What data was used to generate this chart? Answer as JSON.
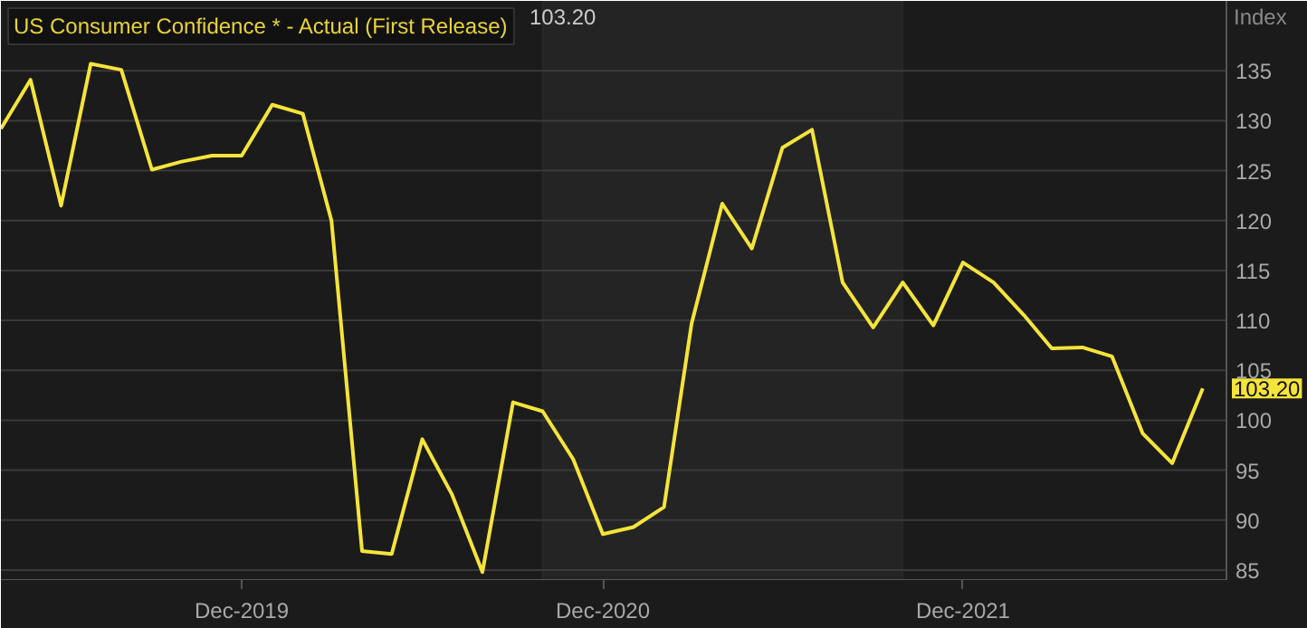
{
  "chart_data": {
    "type": "line",
    "title": "US Consumer Confidence * - Actual (First Release)",
    "subtitle": "103.20",
    "ylabel": "Index",
    "x": [
      "2019-04",
      "2019-05",
      "2019-06",
      "2019-07",
      "2019-08",
      "2019-09",
      "2019-10",
      "2019-11",
      "2019-12",
      "2020-01",
      "2020-02",
      "2020-03",
      "2020-04",
      "2020-05",
      "2020-06",
      "2020-07",
      "2020-08",
      "2020-09",
      "2020-10",
      "2020-11",
      "2020-12",
      "2021-01",
      "2021-02",
      "2021-03",
      "2021-04",
      "2021-05",
      "2021-06",
      "2021-07",
      "2021-08",
      "2021-09",
      "2021-10",
      "2021-11",
      "2021-12",
      "2022-01",
      "2022-02",
      "2022-03",
      "2022-04",
      "2022-05",
      "2022-06",
      "2022-07",
      "2022-08"
    ],
    "series": [
      {
        "color": "#f5e43a",
        "values": [
          129.2,
          134.1,
          121.5,
          135.7,
          135.1,
          125.1,
          125.9,
          126.5,
          126.5,
          131.6,
          130.7,
          120.0,
          86.9,
          86.6,
          98.1,
          92.6,
          84.8,
          101.8,
          100.9,
          96.1,
          88.6,
          89.3,
          91.3,
          109.7,
          121.7,
          117.2,
          127.3,
          129.1,
          113.8,
          109.3,
          113.8,
          109.5,
          115.8,
          113.8,
          110.5,
          107.2,
          107.3,
          106.4,
          98.7,
          95.7,
          103.2
        ]
      }
    ],
    "xlim": [
      "2019-04-01",
      "2022-08-25"
    ],
    "ylim": [
      84,
      142
    ],
    "xticks": [
      {
        "value": "2019-12",
        "label": "Dec-2019"
      },
      {
        "value": "2020-12",
        "label": "Dec-2020"
      },
      {
        "value": "2021-12",
        "label": "Dec-2021"
      }
    ],
    "yticks": [
      85,
      90,
      95,
      100,
      105,
      110,
      115,
      120,
      125,
      130,
      135
    ],
    "bands": [
      {
        "axis": "x",
        "from": "2020-10",
        "to": "2021-10",
        "color": "#242424"
      }
    ],
    "annotations": [
      "103.20"
    ],
    "grid": "y",
    "marker": "none",
    "line_style": "solid"
  }
}
